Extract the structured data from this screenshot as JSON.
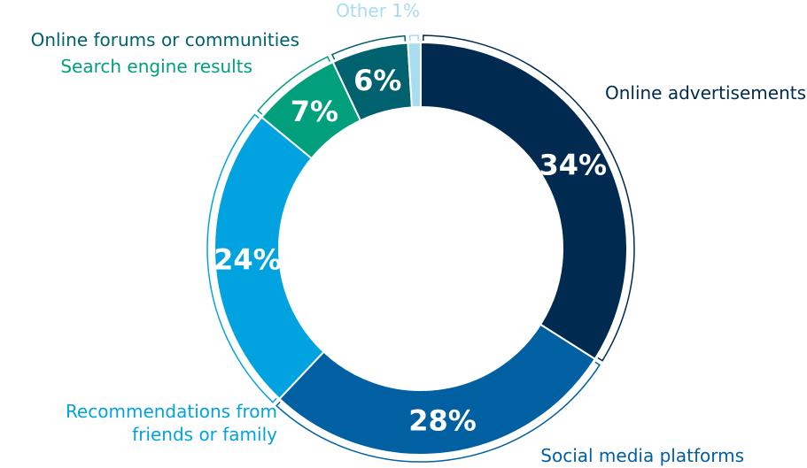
{
  "chart_data": {
    "type": "pie",
    "donut": true,
    "title": "",
    "slices": [
      {
        "label": "Online advertisements",
        "label_lines": [
          "Online advertisements"
        ],
        "value": 34,
        "value_label": "34%",
        "color": "#002a4f",
        "label_color": "#002a4f"
      },
      {
        "label": "Social media platforms",
        "label_lines": [
          "Social media platforms"
        ],
        "value": 28,
        "value_label": "28%",
        "color": "#0060a2",
        "label_color": "#0060a2"
      },
      {
        "label": "Recommendations from friends or family",
        "label_lines": [
          "Recommendations from",
          "friends or family"
        ],
        "value": 24,
        "value_label": "24%",
        "color": "#00a3e0",
        "label_color": "#00a3e0"
      },
      {
        "label": "Search engine results",
        "label_lines": [
          "Search engine results"
        ],
        "value": 7,
        "value_label": "7%",
        "color": "#00a07c",
        "label_color": "#00a07c"
      },
      {
        "label": "Online forums or communities",
        "label_lines": [
          "Online forums or communities"
        ],
        "value": 6,
        "value_label": "6%",
        "color": "#00616f",
        "label_color": "#00616f"
      },
      {
        "label": "Other",
        "label_lines": [
          "Other 1%"
        ],
        "value": 1,
        "value_label": "",
        "color": "#a8dcf0",
        "label_color": "#a8dcf0"
      }
    ]
  }
}
